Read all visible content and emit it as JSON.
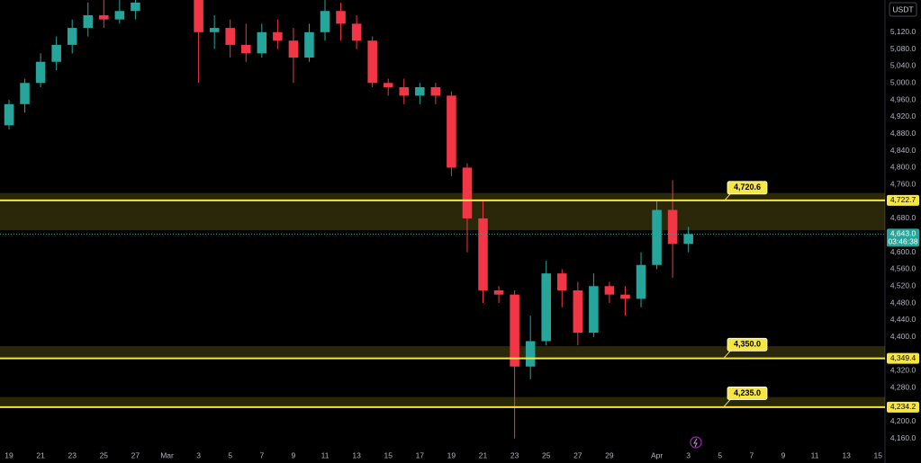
{
  "chart_data": {
    "type": "candlestick",
    "currency": "USDT",
    "x": [
      0,
      1,
      2,
      3,
      4,
      5,
      6,
      7,
      8,
      12,
      13,
      14,
      15,
      16,
      17,
      18,
      19,
      20,
      21,
      22,
      23,
      24,
      25,
      26,
      27,
      28,
      29,
      30,
      31,
      32,
      33,
      34,
      35,
      36,
      37,
      38,
      39,
      40,
      41,
      42,
      43
    ],
    "open": [
      4900,
      4950,
      5000,
      5050,
      5090,
      5130,
      5160,
      5150,
      5170,
      5200,
      5120,
      5130,
      5090,
      5070,
      5120,
      5100,
      5060,
      5120,
      5170,
      5140,
      5100,
      5000,
      4990,
      4970,
      4990,
      4970,
      4800,
      4680,
      4510,
      4500,
      4330,
      4390,
      4550,
      4510,
      4410,
      4520,
      4500,
      4490,
      4570,
      4700,
      4620
    ],
    "high": [
      4960,
      5010,
      5070,
      5110,
      5150,
      5190,
      5200,
      5200,
      5210,
      5210,
      5160,
      5150,
      5140,
      5140,
      5150,
      5130,
      5140,
      5200,
      5190,
      5160,
      5110,
      5010,
      5010,
      5000,
      5000,
      4980,
      4810,
      4720,
      4520,
      4510,
      4450,
      4580,
      4560,
      4530,
      4550,
      4530,
      4520,
      4600,
      4720,
      4770,
      4660
    ],
    "low": [
      4890,
      4930,
      4990,
      5030,
      5070,
      5110,
      5130,
      5140,
      5150,
      5000,
      5080,
      5060,
      5050,
      5060,
      5080,
      5000,
      5050,
      5100,
      5100,
      5080,
      4990,
      4970,
      4950,
      4950,
      4950,
      4780,
      4600,
      4480,
      4480,
      4160,
      4300,
      4380,
      4470,
      4380,
      4400,
      4480,
      4450,
      4470,
      4560,
      4540,
      4600
    ],
    "close": [
      4950,
      5000,
      5050,
      5090,
      5130,
      5160,
      5150,
      5170,
      5190,
      5120,
      5130,
      5090,
      5070,
      5120,
      5100,
      5060,
      5120,
      5170,
      5140,
      5100,
      5000,
      4990,
      4970,
      4990,
      4970,
      4800,
      4680,
      4510,
      4500,
      4330,
      4390,
      4550,
      4510,
      4410,
      4520,
      4500,
      4490,
      4570,
      4700,
      4620,
      4643
    ],
    "up_color": "#26a69a",
    "down_color": "#f23645",
    "xlim": [
      -0.57,
      55.44
    ],
    "ylim": [
      4134,
      5196
    ],
    "xticks": [
      {
        "value": 0,
        "label": "19"
      },
      {
        "value": 2,
        "label": "21"
      },
      {
        "value": 4,
        "label": "23"
      },
      {
        "value": 6,
        "label": "25"
      },
      {
        "value": 8,
        "label": "27"
      },
      {
        "value": 10,
        "label": "Mar"
      },
      {
        "value": 12,
        "label": "3"
      },
      {
        "value": 14,
        "label": "5"
      },
      {
        "value": 16,
        "label": "7"
      },
      {
        "value": 18,
        "label": "9"
      },
      {
        "value": 20,
        "label": "11"
      },
      {
        "value": 22,
        "label": "13"
      },
      {
        "value": 24,
        "label": "15"
      },
      {
        "value": 26,
        "label": "17"
      },
      {
        "value": 28,
        "label": "19"
      },
      {
        "value": 30,
        "label": "21"
      },
      {
        "value": 32,
        "label": "23"
      },
      {
        "value": 34,
        "label": "25"
      },
      {
        "value": 36,
        "label": "27"
      },
      {
        "value": 38,
        "label": "29"
      },
      {
        "value": 41,
        "label": "Apr"
      },
      {
        "value": 43,
        "label": "3"
      },
      {
        "value": 45,
        "label": "5"
      },
      {
        "value": 47,
        "label": "7"
      },
      {
        "value": 49,
        "label": "9"
      },
      {
        "value": 51,
        "label": "11"
      },
      {
        "value": 53,
        "label": "13"
      },
      {
        "value": 55,
        "label": "15"
      }
    ],
    "yticks": [
      {
        "value": 4160,
        "label": "4,160.0"
      },
      {
        "value": 4200,
        "label": "4,200.0"
      },
      {
        "value": 4280,
        "label": "4,280.0"
      },
      {
        "value": 4320,
        "label": "4,320.0"
      },
      {
        "value": 4400,
        "label": "4,400.0"
      },
      {
        "value": 4440,
        "label": "4,440.0"
      },
      {
        "value": 4480,
        "label": "4,480.0"
      },
      {
        "value": 4520,
        "label": "4,520.0"
      },
      {
        "value": 4560,
        "label": "4,560.0"
      },
      {
        "value": 4600,
        "label": "4,600.0"
      },
      {
        "value": 4680,
        "label": "4,680.0"
      },
      {
        "value": 4760,
        "label": "4,760.0"
      },
      {
        "value": 4800,
        "label": "4,800.0"
      },
      {
        "value": 4840,
        "label": "4,840.0"
      },
      {
        "value": 4880,
        "label": "4,880.0"
      },
      {
        "value": 4920,
        "label": "4,920.0"
      },
      {
        "value": 4960,
        "label": "4,960.0"
      },
      {
        "value": 5000,
        "label": "5,000.0"
      },
      {
        "value": 5040,
        "label": "5,040.0"
      },
      {
        "value": 5080,
        "label": "5,080.0"
      },
      {
        "value": 5120,
        "label": "5,120.0"
      }
    ],
    "zones": [
      [
        4652,
        4740
      ],
      [
        4349,
        4378
      ],
      [
        4234,
        4258
      ]
    ],
    "levels": [
      {
        "value": 4722.7,
        "label": "4,722.7"
      },
      {
        "value": 4349.4,
        "label": "4,349.4"
      },
      {
        "value": 4234.2,
        "label": "4,234.2"
      }
    ],
    "callouts": [
      {
        "value": 4720.6,
        "label": "4,720.6"
      },
      {
        "value": 4350.0,
        "label": "4,350.0"
      },
      {
        "value": 4235.0,
        "label": "4,235.0"
      }
    ],
    "last_price": {
      "value": 4643,
      "label": "4,643.0"
    },
    "countdown": "03:46:38"
  }
}
